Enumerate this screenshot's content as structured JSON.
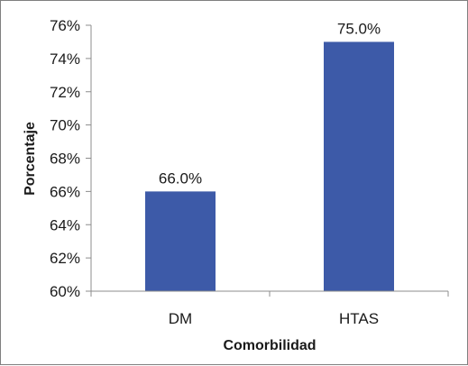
{
  "chart_data": {
    "type": "bar",
    "title": "",
    "xlabel": "Comorbilidad",
    "ylabel": "Porcentaje",
    "categories": [
      "DM",
      "HTAS"
    ],
    "values": [
      66.0,
      75.0
    ],
    "data_labels": [
      "66.0%",
      "75.0%"
    ],
    "ylim": [
      60,
      76
    ],
    "yticks": [
      60,
      62,
      64,
      66,
      68,
      70,
      72,
      74,
      76
    ],
    "ytick_labels": [
      "60%",
      "62%",
      "64%",
      "66%",
      "68%",
      "70%",
      "72%",
      "74%",
      "76%"
    ],
    "grid": false,
    "legend": "none",
    "bar_color": "#3d5aa8"
  }
}
